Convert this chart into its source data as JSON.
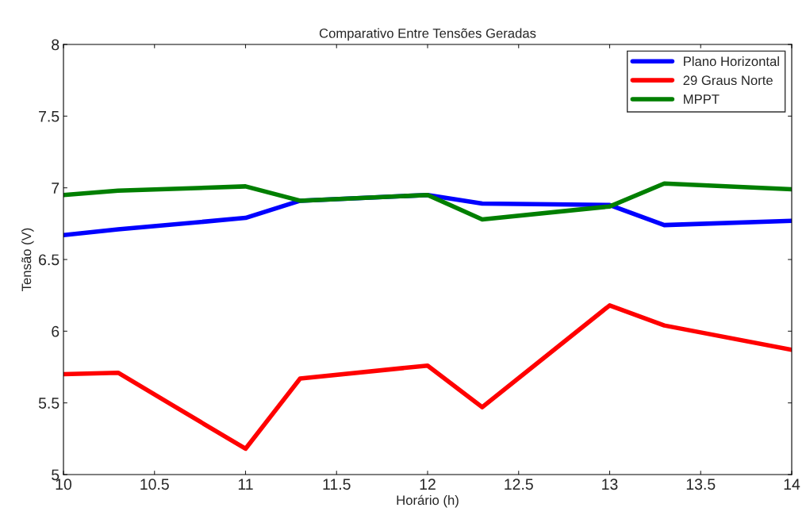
{
  "chart_data": {
    "type": "line",
    "title": "Comparativo Entre Tensões Geradas",
    "xlabel": "Horário (h)",
    "ylabel": "Tensão (V)",
    "x": [
      10,
      10.3,
      11,
      11.3,
      12,
      12.3,
      13,
      13.3,
      14
    ],
    "series": [
      {
        "name": "Plano Horizontal",
        "color": "#0000ff",
        "values": [
          6.67,
          6.71,
          6.79,
          6.91,
          6.95,
          6.89,
          6.88,
          6.74,
          6.77
        ]
      },
      {
        "name": "29 Graus Norte",
        "color": "#ff0000",
        "values": [
          5.7,
          5.71,
          5.18,
          5.67,
          5.76,
          5.47,
          6.18,
          6.04,
          5.87
        ]
      },
      {
        "name": "MPPT",
        "color": "#007f00",
        "values": [
          6.95,
          6.98,
          7.01,
          6.91,
          6.95,
          6.78,
          6.87,
          7.03,
          6.99
        ]
      }
    ],
    "xlim": [
      10,
      14
    ],
    "xticks": [
      10,
      10.5,
      11,
      11.5,
      12,
      12.5,
      13,
      13.5,
      14
    ],
    "ylim": [
      5,
      8
    ],
    "yticks": [
      5,
      5.5,
      6,
      6.5,
      7,
      7.5,
      8
    ],
    "grid": false,
    "legend": "top right",
    "marker": "none",
    "line_style": "solid"
  }
}
